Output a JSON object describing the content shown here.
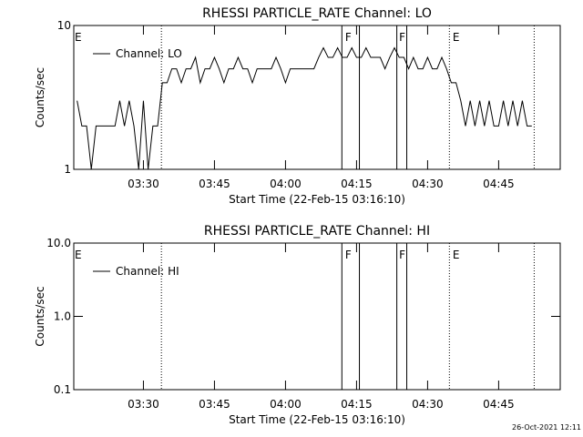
{
  "chart_data": [
    {
      "type": "line",
      "title": "RHESSI PARTICLE_RATE Channel: LO",
      "xlabel": "Start Time (22-Feb-15 03:16:10)",
      "ylabel": "Counts/sec",
      "log_y": true,
      "xlim": [
        195.3,
        298
      ],
      "ylim": [
        1,
        10
      ],
      "xticks": [
        {
          "value": 210,
          "label": "03:30"
        },
        {
          "value": 225,
          "label": "03:45"
        },
        {
          "value": 240,
          "label": "04:00"
        },
        {
          "value": 255,
          "label": "04:15"
        },
        {
          "value": 270,
          "label": "04:30"
        },
        {
          "value": 285,
          "label": "04:45"
        }
      ],
      "yticks": [
        1,
        10
      ],
      "legend": "top-left",
      "markers": [
        {
          "x": 213.8,
          "style": "dotted"
        },
        {
          "x": 251.9,
          "style": "solid"
        },
        {
          "x": 255.6,
          "style": "solid"
        },
        {
          "x": 263.5,
          "style": "solid"
        },
        {
          "x": 265.6,
          "style": "solid"
        },
        {
          "x": 274.6,
          "style": "dotted"
        },
        {
          "x": 292.5,
          "style": "dotted"
        }
      ],
      "annotations": [
        {
          "text": "E",
          "x": 195.3
        },
        {
          "text": "F",
          "x": 252.4
        },
        {
          "text": "F",
          "x": 263.8
        },
        {
          "text": "E",
          "x": 275.1
        }
      ],
      "x": [
        196,
        197,
        198,
        199,
        200,
        201,
        202,
        203,
        204,
        205,
        206,
        207,
        208,
        209,
        210,
        211,
        212,
        213,
        214,
        215,
        216,
        217,
        218,
        219,
        220,
        221,
        222,
        223,
        224,
        225,
        226,
        227,
        228,
        229,
        230,
        231,
        232,
        233,
        234,
        235,
        236,
        237,
        238,
        239,
        240,
        241,
        242,
        243,
        244,
        245,
        246,
        247,
        248,
        249,
        250,
        251,
        252,
        253,
        254,
        255,
        256,
        257,
        258,
        259,
        260,
        261,
        262,
        263,
        264,
        265,
        266,
        267,
        268,
        269,
        270,
        271,
        272,
        273,
        274,
        275,
        276,
        277,
        278,
        279,
        280,
        281,
        282,
        283,
        284,
        285,
        286,
        287,
        288,
        289,
        290,
        291,
        292
      ],
      "series": [
        {
          "name": "Channel: LO",
          "color": "#000000",
          "values": [
            3,
            2,
            2,
            1,
            2,
            2,
            2,
            2,
            2,
            3,
            2,
            3,
            2,
            1,
            3,
            1,
            2,
            2,
            4,
            4,
            5,
            5,
            4,
            5,
            5,
            6,
            4,
            5,
            5,
            6,
            5,
            4,
            5,
            5,
            6,
            5,
            5,
            4,
            5,
            5,
            5,
            5,
            6,
            5,
            4,
            5,
            5,
            5,
            5,
            5,
            5,
            6,
            7,
            6,
            6,
            7,
            6,
            6,
            7,
            6,
            6,
            7,
            6,
            6,
            6,
            5,
            6,
            7,
            6,
            6,
            5,
            6,
            5,
            5,
            6,
            5,
            5,
            6,
            5,
            4,
            4,
            3,
            2,
            3,
            2,
            3,
            2,
            3,
            2,
            2,
            3,
            2,
            3,
            2,
            3,
            2,
            2
          ]
        }
      ]
    },
    {
      "type": "line",
      "title": "RHESSI PARTICLE_RATE Channel: HI",
      "xlabel": "Start Time (22-Feb-15 03:16:10)",
      "ylabel": "Counts/sec",
      "log_y": true,
      "xlim": [
        195.3,
        298
      ],
      "ylim": [
        0.1,
        10
      ],
      "xticks": [
        {
          "value": 210,
          "label": "03:30"
        },
        {
          "value": 225,
          "label": "03:45"
        },
        {
          "value": 240,
          "label": "04:00"
        },
        {
          "value": 255,
          "label": "04:15"
        },
        {
          "value": 270,
          "label": "04:30"
        },
        {
          "value": 285,
          "label": "04:45"
        }
      ],
      "yticks": [
        0.1,
        {
          "value": 1,
          "label": "1.0"
        },
        {
          "value": 10,
          "label": "10.0"
        }
      ],
      "legend": "top-left",
      "markers": [
        {
          "x": 213.8,
          "style": "dotted"
        },
        {
          "x": 251.9,
          "style": "solid"
        },
        {
          "x": 255.6,
          "style": "solid"
        },
        {
          "x": 263.5,
          "style": "solid"
        },
        {
          "x": 265.6,
          "style": "solid"
        },
        {
          "x": 274.6,
          "style": "dotted"
        },
        {
          "x": 292.5,
          "style": "dotted"
        }
      ],
      "annotations": [
        {
          "text": "E",
          "x": 195.3
        },
        {
          "text": "F",
          "x": 252.4
        },
        {
          "text": "F",
          "x": 263.8
        },
        {
          "text": "E",
          "x": 275.1
        }
      ],
      "x": [],
      "series": [
        {
          "name": "Channel: HI",
          "color": "#000000",
          "values": []
        }
      ]
    }
  ],
  "footer": "26-Oct-2021 12:11"
}
